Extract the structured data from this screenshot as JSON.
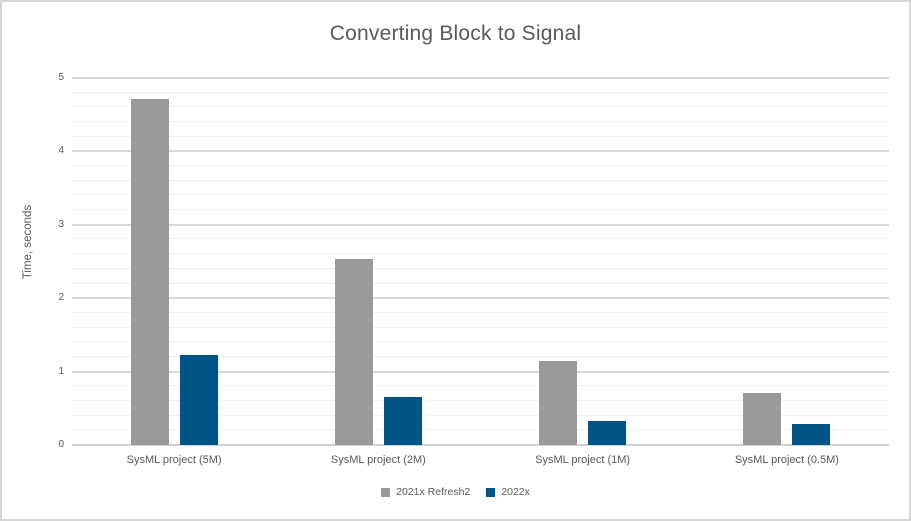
{
  "window": {
    "background": "#ffffff",
    "border_color": "#d6d6d6"
  },
  "style": {
    "text_color": "#595959",
    "major_gridline_color": "#d9d9d9",
    "minor_gridline_color": "#f2f2f2",
    "axis_line_color": "#d2d2d2"
  },
  "chart_data": {
    "type": "bar",
    "title": "Converting Block to Signal",
    "xlabel": "",
    "ylabel": "Time, seconds",
    "categories": [
      "SysML project (5M)",
      "SysML project (2M)",
      "SysML project (1M)",
      "SysML project (0.5M)"
    ],
    "series": [
      {
        "name": "2021x Refresh2",
        "color": "#9a9a9c",
        "values": [
          4.72,
          2.53,
          1.15,
          0.71
        ]
      },
      {
        "name": "2022x",
        "color": "#005587",
        "values": [
          1.22,
          0.66,
          0.33,
          0.29
        ]
      }
    ],
    "ylim": [
      0,
      5
    ],
    "y_major_ticks": [
      0,
      1,
      2,
      3,
      4,
      5
    ],
    "y_tick_labels": [
      "0",
      "1",
      "2",
      "3",
      "4",
      "5"
    ],
    "y_minor_step": 0.2,
    "grid": true,
    "legend_position": "bottom"
  }
}
